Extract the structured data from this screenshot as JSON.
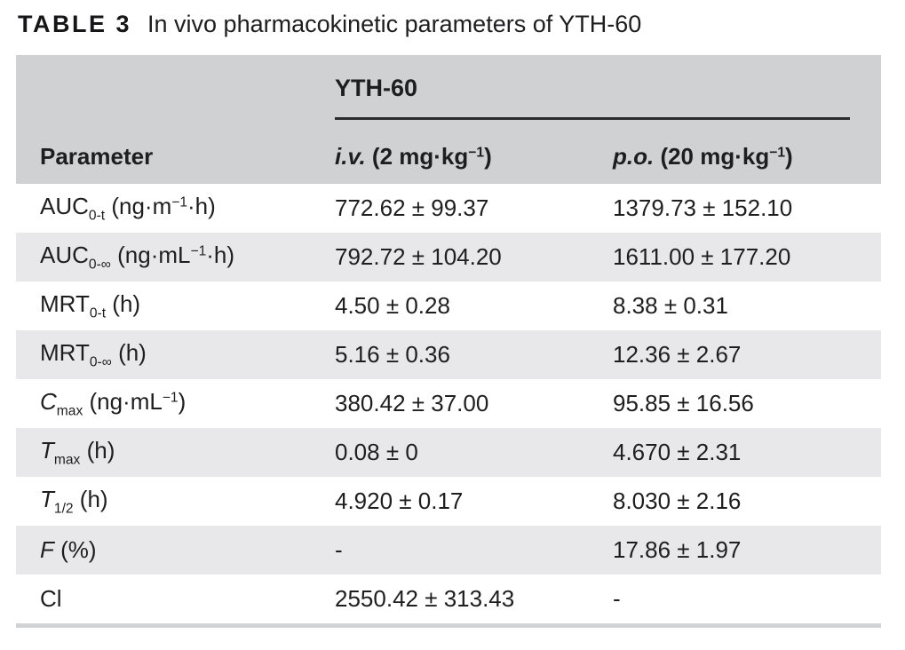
{
  "title": {
    "label": "TABLE 3",
    "text": "In vivo pharmacokinetic parameters of YTH-60"
  },
  "colors": {
    "header_bg": "#d0d1d3",
    "stripe_bg": "#e8e8ea",
    "rule_dark": "#2b2b2d",
    "bottom_rule": "#d2d3d5",
    "text": "#1e1e20"
  },
  "table": {
    "group_header": "YTH-60",
    "columns": [
      {
        "name": "parameter",
        "segments": [
          {
            "t": "Parameter"
          }
        ]
      },
      {
        "name": "iv",
        "segments": [
          {
            "t": "i.v.",
            "italic": true
          },
          {
            "t": " (2 mg·kg"
          },
          {
            "t": "−1",
            "sup": true
          },
          {
            "t": ")"
          }
        ]
      },
      {
        "name": "po",
        "segments": [
          {
            "t": "p.o.",
            "italic": true
          },
          {
            "t": " (20 mg·kg"
          },
          {
            "t": "−1",
            "sup": true
          },
          {
            "t": ")"
          }
        ]
      }
    ],
    "rows": [
      {
        "param": [
          {
            "t": "AUC"
          },
          {
            "t": "0-t",
            "sub": true
          },
          {
            "t": " (ng·m"
          },
          {
            "t": "−1",
            "sup": true
          },
          {
            "t": "·h)"
          }
        ],
        "iv": "772.62 ± 99.37",
        "po": "1379.73 ± 152.10"
      },
      {
        "param": [
          {
            "t": "AUC"
          },
          {
            "t": "0-∞",
            "sub": true
          },
          {
            "t": " (ng·mL"
          },
          {
            "t": "−1",
            "sup": true
          },
          {
            "t": "·h)"
          }
        ],
        "iv": "792.72 ± 104.20",
        "po": "1611.00 ± 177.20"
      },
      {
        "param": [
          {
            "t": "MRT"
          },
          {
            "t": "0-t",
            "sub": true
          },
          {
            "t": " (h)"
          }
        ],
        "iv": "4.50 ± 0.28",
        "po": "8.38 ± 0.31"
      },
      {
        "param": [
          {
            "t": "MRT"
          },
          {
            "t": "0-∞",
            "sub": true
          },
          {
            "t": " (h)"
          }
        ],
        "iv": "5.16 ± 0.36",
        "po": "12.36 ± 2.67"
      },
      {
        "param": [
          {
            "t": "C",
            "italic": true
          },
          {
            "t": "max",
            "sub": true
          },
          {
            "t": " (ng·mL"
          },
          {
            "t": "−1",
            "sup": true
          },
          {
            "t": ")"
          }
        ],
        "iv": "380.42 ± 37.00",
        "po": "95.85 ± 16.56"
      },
      {
        "param": [
          {
            "t": "T",
            "italic": true
          },
          {
            "t": "max",
            "sub": true
          },
          {
            "t": " (h)"
          }
        ],
        "iv": "0.08 ± 0",
        "po": "4.670 ± 2.31"
      },
      {
        "param": [
          {
            "t": "T",
            "italic": true
          },
          {
            "t": "1/2",
            "sub": true
          },
          {
            "t": " (h)"
          }
        ],
        "iv": "4.920 ± 0.17",
        "po": "8.030 ± 2.16"
      },
      {
        "param": [
          {
            "t": "F",
            "italic": true
          },
          {
            "t": " (%)"
          }
        ],
        "iv": "-",
        "po": "17.86 ± 1.97"
      },
      {
        "param": [
          {
            "t": "Cl"
          }
        ],
        "iv": "2550.42 ± 313.43",
        "po": "-"
      }
    ]
  }
}
